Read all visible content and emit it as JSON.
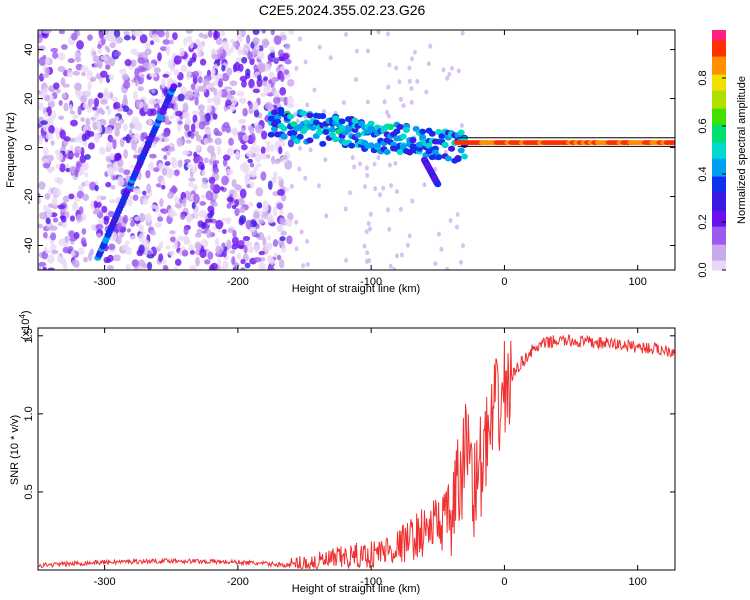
{
  "title": "C2E5.2024.355.02.23.G26",
  "chart_data": [
    {
      "type": "heatmap",
      "xlabel": "Height of straight line (km)",
      "ylabel": "Frequency (Hz)",
      "xlim": [
        -350,
        128
      ],
      "ylim": [
        -50,
        48
      ],
      "xticks": [
        -300,
        -200,
        -100,
        0,
        100
      ],
      "yticks": [
        -40,
        -20,
        0,
        20,
        40
      ],
      "colorbar": {
        "label": "Normalized spectral amplitude",
        "range": [
          0,
          1
        ],
        "ticks": [
          "0.0",
          "0.2",
          "0.4",
          "0.6",
          "0.8"
        ],
        "tick_values": [
          0,
          0.2,
          0.4,
          0.6,
          0.8
        ],
        "colors": [
          "#e8d8f5",
          "#c9a8ee",
          "#9b59f0",
          "#6a10f0",
          "#3a1ae0",
          "#1030f0",
          "#00a0f0",
          "#00d8d0",
          "#00e070",
          "#40e000",
          "#b0e000",
          "#f0e000",
          "#ff9000",
          "#ff3000",
          "#ff2080"
        ]
      },
      "features": [
        {
          "name": "diagonal streak",
          "x": [
            -305,
            -248
          ],
          "y": [
            -45,
            25
          ],
          "amplitude": 0.35
        },
        {
          "name": "signal band",
          "x": [
            -175,
            -30
          ],
          "y": [
            10,
            0
          ],
          "amplitude": 0.45
        },
        {
          "name": "descending branch",
          "x": [
            -60,
            -50
          ],
          "y": [
            -5,
            -15
          ],
          "amplitude": 0.3
        },
        {
          "name": "tone line",
          "x": [
            -35,
            128
          ],
          "y": [
            2,
            2
          ],
          "amplitude": 0.95
        }
      ],
      "noise_region_x": [
        -350,
        -160
      ]
    },
    {
      "type": "line",
      "xlabel": "Height of straight line (km)",
      "ylabel": "SNR (10 * v/v)",
      "multiplier": "(x10",
      "multiplier_exp": "4",
      "multiplier_close": ")",
      "xlim": [
        -350,
        128
      ],
      "ylim": [
        0,
        1.55
      ],
      "xticks": [
        -300,
        -200,
        -100,
        0,
        100
      ],
      "yticks": [
        0.5,
        1.0,
        1.5
      ],
      "ytick_labels": [
        "0.5",
        "1.0",
        "1.5"
      ],
      "series": [
        {
          "color": "#f03030",
          "x": [
            -350,
            -300,
            -250,
            -200,
            -160,
            -140,
            -120,
            -100,
            -80,
            -60,
            -50,
            -40,
            -35,
            -30,
            -28,
            -25,
            -22,
            -20,
            -15,
            -10,
            -5,
            0,
            10,
            20,
            30,
            40,
            60,
            80,
            100,
            128
          ],
          "y": [
            0.03,
            0.05,
            0.06,
            0.05,
            0.03,
            0.05,
            0.08,
            0.1,
            0.15,
            0.25,
            0.3,
            0.35,
            0.5,
            0.7,
            0.9,
            0.7,
            0.5,
            0.6,
            0.75,
            0.9,
            1.05,
            1.15,
            1.3,
            1.4,
            1.45,
            1.47,
            1.46,
            1.45,
            1.43,
            1.4
          ]
        }
      ]
    }
  ]
}
